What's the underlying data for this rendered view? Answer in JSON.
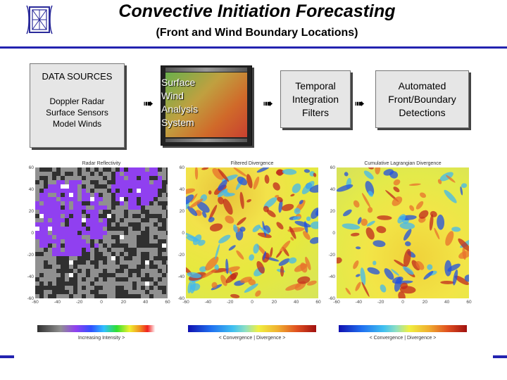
{
  "header": {
    "title": "Convective Initiation Forecasting",
    "subtitle": "(Front and Wind Boundary Locations)",
    "logo_icon": "institution-seal-icon"
  },
  "flow": {
    "data_sources": {
      "heading": "DATA SOURCES",
      "items": [
        "Doppler Radar",
        "Surface Sensors",
        "Model Winds"
      ]
    },
    "wind_analysis": {
      "lines": [
        "Surface",
        "Wind",
        "Analysis",
        "System"
      ]
    },
    "temporal": {
      "lines": [
        "Temporal",
        "Integration",
        "Filters"
      ]
    },
    "automated": {
      "lines": [
        "Automated",
        "Front/Boundary",
        "Detections"
      ]
    },
    "arrow_icon": "right-arrow-icon"
  },
  "panels": [
    {
      "title": "Radar Reflectivity",
      "yticks": [
        "60",
        "40",
        "20",
        "0",
        "-20",
        "-40",
        "-60"
      ],
      "xticks": [
        "-60",
        "-40",
        "-20",
        "0",
        "20",
        "40",
        "60"
      ],
      "colorbar_label": "Increasing Intensity >",
      "colors": [
        "#303030",
        "#909090",
        "#9040f0",
        "#ffffff"
      ]
    },
    {
      "title": "Filtered Divergence",
      "yticks": [
        "60",
        "40",
        "20",
        "0",
        "-20",
        "-40",
        "-60"
      ],
      "xticks": [
        "-60",
        "-40",
        "-20",
        "0",
        "20",
        "40",
        "60"
      ],
      "colorbar_label": "< Convergence | Divergence >"
    },
    {
      "title": "Cumulative Lagrangian Divergence",
      "yticks": [
        "60",
        "40",
        "20",
        "0",
        "-20",
        "-40",
        "-60"
      ],
      "xticks": [
        "-60",
        "-40",
        "-20",
        "0",
        "20",
        "40",
        "60"
      ],
      "colorbar_label": "< Convergence | Divergence >"
    }
  ],
  "colors": {
    "accent": "#2323b0",
    "box_fill": "#e6e6e6"
  }
}
